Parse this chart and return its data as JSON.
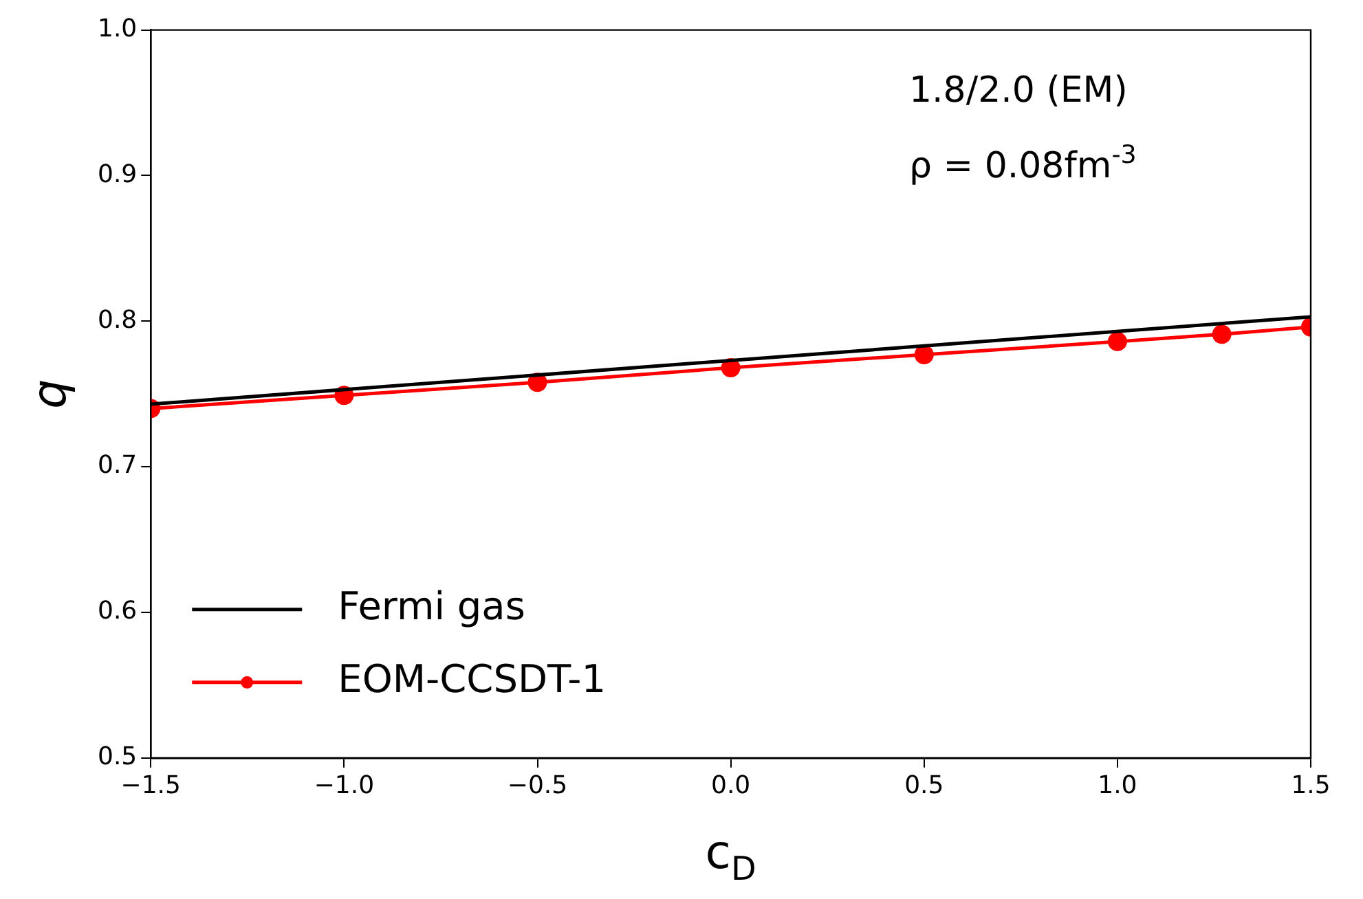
{
  "chart_data": {
    "type": "line",
    "xlabel": "c$_{D}$",
    "ylabel": "q",
    "annotations": [
      "1.8/2.0 (EM)",
      "ρ = 0.08fm$^{-3}$"
    ],
    "xlim": [
      -1.5,
      1.5
    ],
    "ylim": [
      0.5,
      1.0
    ],
    "xticks": [
      {
        "value": -1.5,
        "label": "−1.5"
      },
      {
        "value": -1.0,
        "label": "−1.0"
      },
      {
        "value": -0.5,
        "label": "−0.5"
      },
      {
        "value": 0,
        "label": "0.0"
      },
      {
        "value": 0.5,
        "label": "0.5"
      },
      {
        "value": 1.0,
        "label": "1.0"
      },
      {
        "value": 1.5,
        "label": "1.5"
      }
    ],
    "yticks": [
      {
        "value": 0.5,
        "label": "0.5"
      },
      {
        "value": 0.6,
        "label": "0.6"
      },
      {
        "value": 0.7,
        "label": "0.7"
      },
      {
        "value": 0.8,
        "label": "0.8"
      },
      {
        "value": 0.9,
        "label": "0.9"
      },
      {
        "value": 1.0,
        "label": "1.0"
      }
    ],
    "grid": false,
    "legend": "bottom left",
    "series": [
      {
        "name": "Fermi gas",
        "color": "#000000",
        "marker": "none",
        "x": [
          -1.5,
          1.5
        ],
        "values": [
          0.743,
          0.803
        ]
      },
      {
        "name": "EOM-CCSDT-1",
        "color": "#ff0000",
        "marker": "circle",
        "x": [
          -1.5,
          -1.0,
          -0.5,
          0,
          0.5,
          1.0,
          1.27,
          1.5
        ],
        "values": [
          0.74,
          0.749,
          0.758,
          0.768,
          0.777,
          0.786,
          0.791,
          0.796
        ]
      }
    ]
  }
}
